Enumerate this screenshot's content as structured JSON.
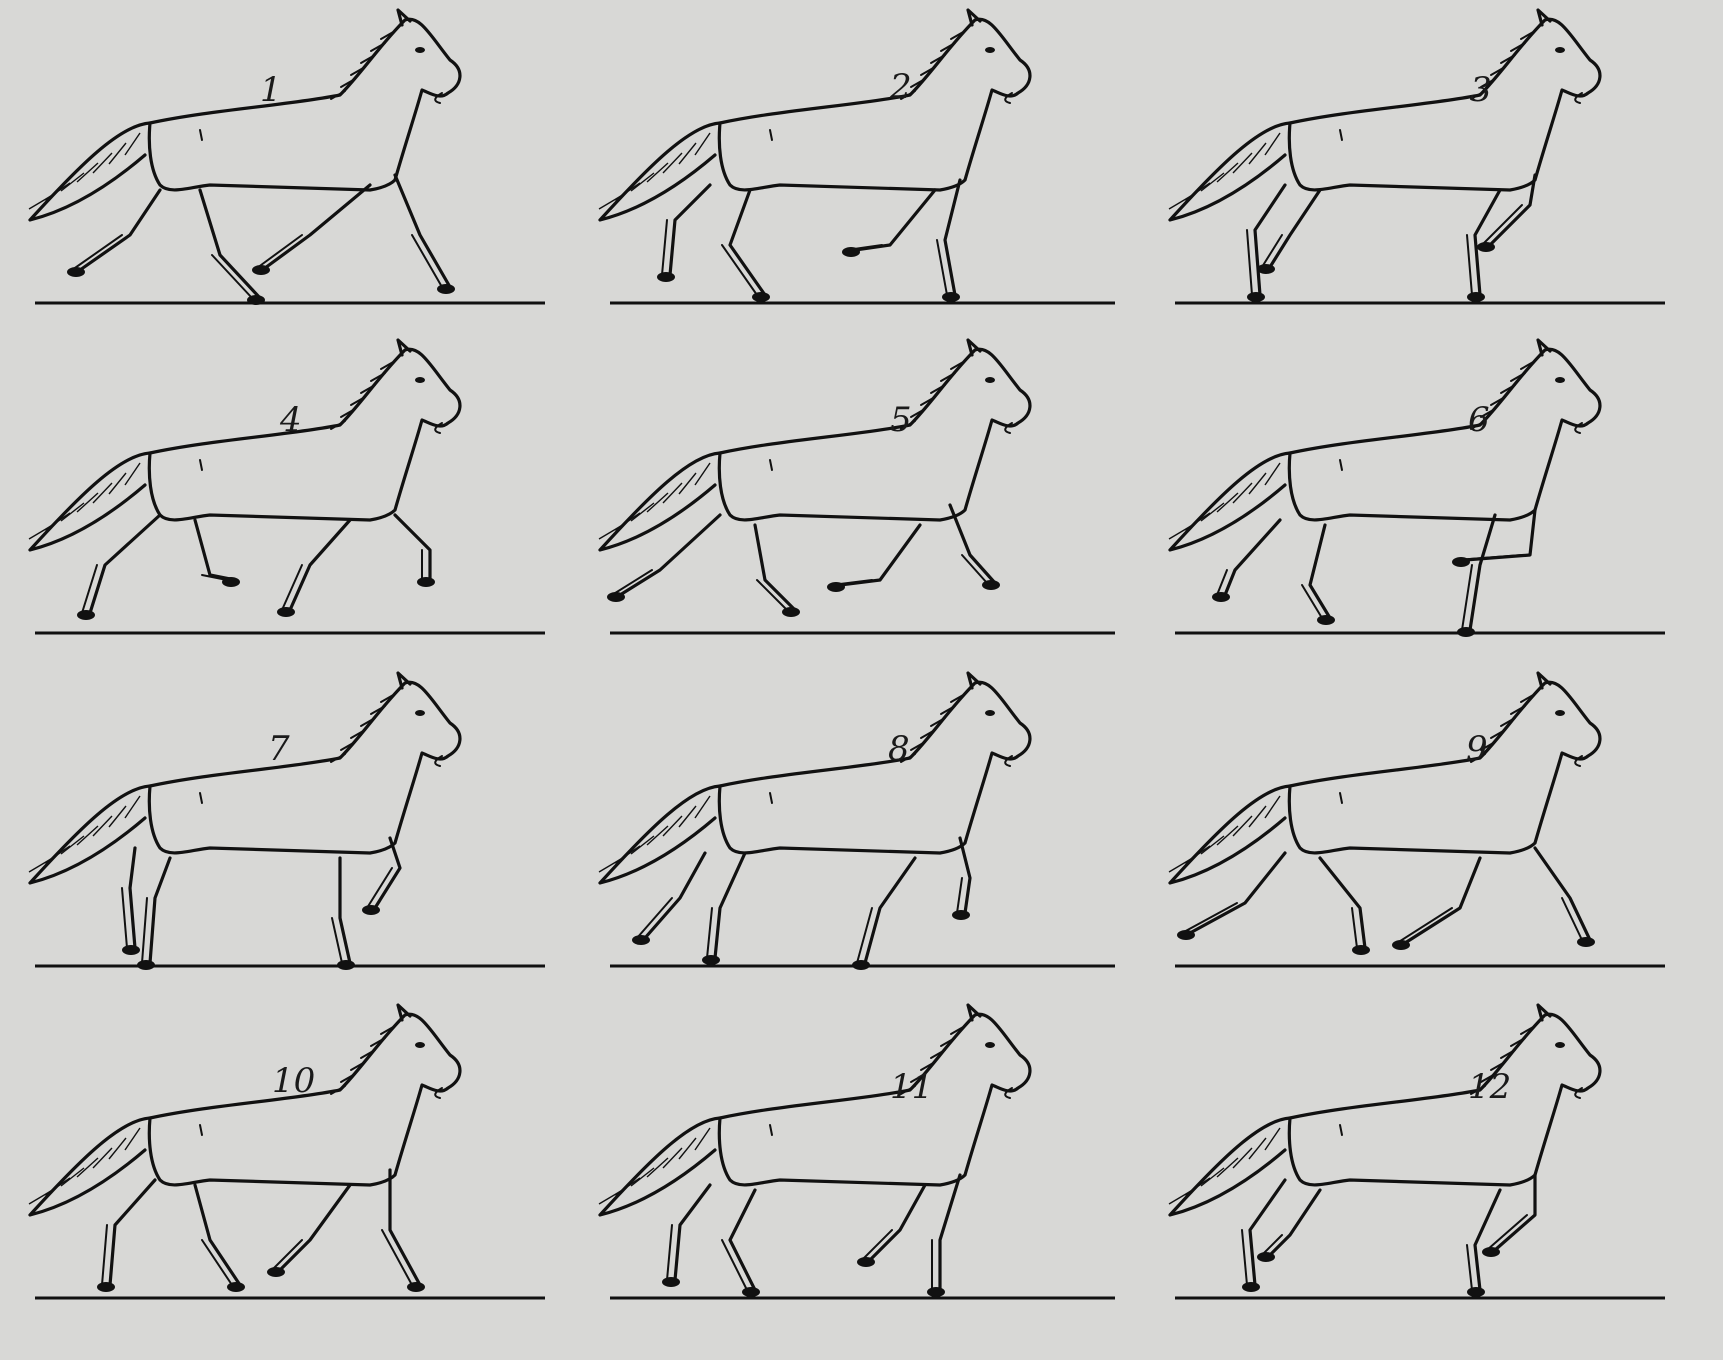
{
  "figures": [
    {
      "number": "1"
    },
    {
      "number": "2"
    },
    {
      "number": "3"
    },
    {
      "number": "4"
    },
    {
      "number": "5"
    },
    {
      "number": "6"
    },
    {
      "number": "7"
    },
    {
      "number": "8"
    },
    {
      "number": "9"
    },
    {
      "number": "10"
    },
    {
      "number": "11"
    },
    {
      "number": "12"
    }
  ]
}
